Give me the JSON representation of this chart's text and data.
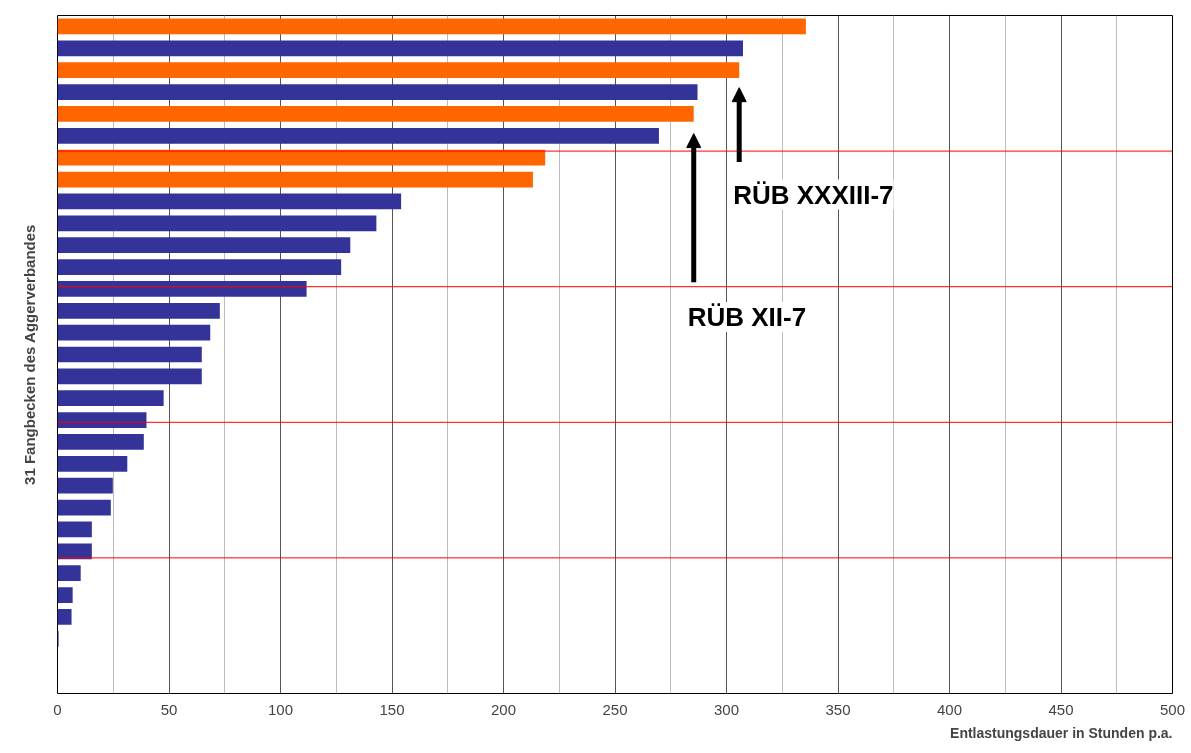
{
  "chart_data": {
    "type": "bar",
    "orientation": "horizontal",
    "xlabel": "Entlastungsdauer in Stunden p.a.",
    "ylabel": "31 Fangbecken des Aggerverbandes",
    "categories": [
      null,
      null,
      null,
      null,
      null,
      null,
      null,
      null,
      null,
      null,
      null,
      null,
      null,
      null,
      null,
      null,
      null,
      null,
      null,
      null,
      null,
      null,
      null,
      null,
      null,
      null,
      null,
      null,
      null,
      null,
      null
    ],
    "values": [
      335.6,
      307.4,
      305.7,
      287,
      285.3,
      269.7,
      218.7,
      213.2,
      154.1,
      143,
      131.3,
      127.2,
      111.7,
      72.8,
      68.5,
      64.7,
      64.7,
      47.6,
      39.9,
      38.7,
      31.3,
      24.8,
      23.9,
      15.4,
      15.4,
      10.4,
      6.8,
      6.3,
      0.5,
      0,
      0
    ],
    "colors": [
      "#ff6600",
      "#333399",
      "#ff6600",
      "#333399",
      "#ff6600",
      "#333399",
      "#ff6600",
      "#ff6600",
      "#333399",
      "#333399",
      "#333399",
      "#333399",
      "#333399",
      "#333399",
      "#333399",
      "#333399",
      "#333399",
      "#333399",
      "#333399",
      "#333399",
      "#333399",
      "#333399",
      "#333399",
      "#333399",
      "#333399",
      "#333399",
      "#333399",
      "#333399",
      "#333399",
      "#333399",
      "#333399"
    ],
    "xlim": [
      0,
      500
    ],
    "xticks": [
      0,
      50,
      100,
      150,
      200,
      250,
      300,
      350,
      400,
      450,
      500
    ],
    "grid": "x",
    "annotations": [
      "RÜB XXXIII-7",
      "RÜB XII-7"
    ]
  }
}
